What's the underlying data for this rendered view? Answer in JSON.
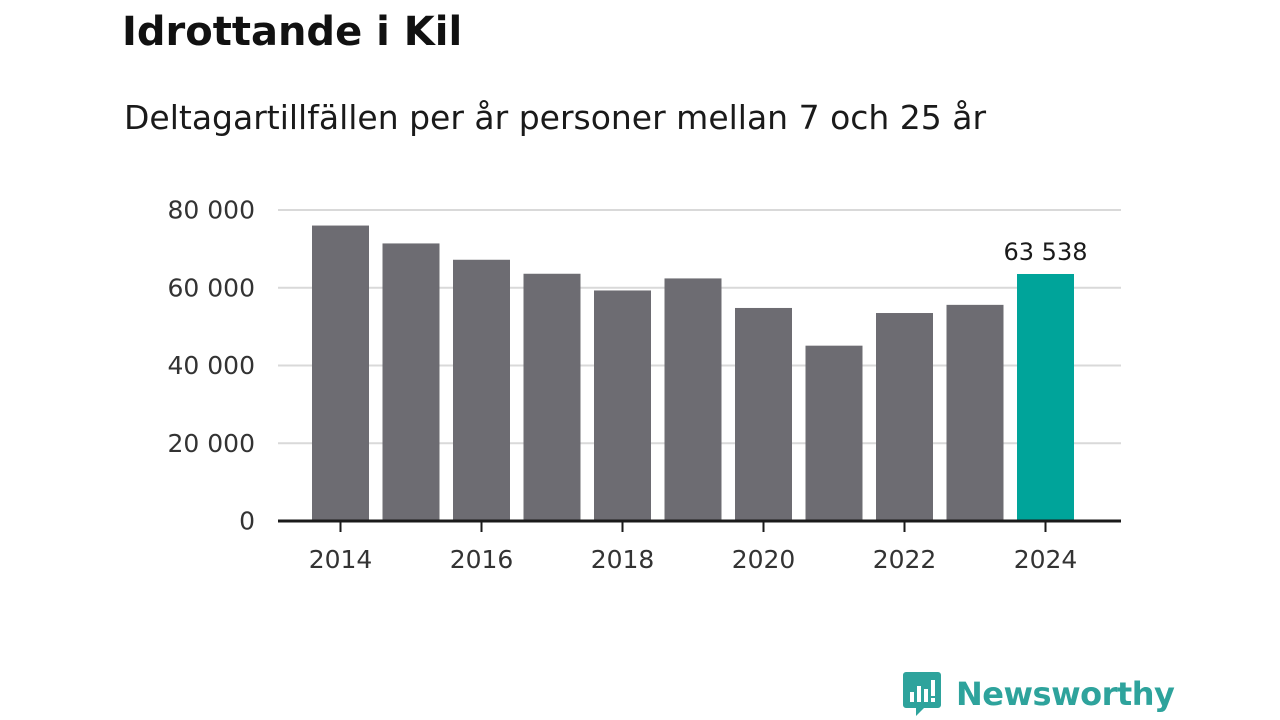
{
  "title": "Idrottande i Kil",
  "subtitle": "Deltagartillfällen per år personer mellan 7 och 25 år",
  "brand": {
    "name": "Newsworthy",
    "icon": "newsworthy-logo-icon",
    "color": "#2ea39c"
  },
  "chart_data": {
    "type": "bar",
    "categories": [
      "2014",
      "2015",
      "2016",
      "2017",
      "2018",
      "2019",
      "2020",
      "2021",
      "2022",
      "2023",
      "2024"
    ],
    "values": [
      76000,
      71400,
      67200,
      63600,
      59300,
      62400,
      54800,
      45100,
      53500,
      55600,
      63538
    ],
    "x_tick_labels": [
      "2014",
      "2016",
      "2018",
      "2020",
      "2022",
      "2024"
    ],
    "y_ticks": [
      0,
      20000,
      40000,
      60000,
      80000
    ],
    "y_tick_labels": [
      "0",
      "20 000",
      "40 000",
      "60 000",
      "80 000"
    ],
    "ylim": [
      0,
      80000
    ],
    "grid": true,
    "highlight": {
      "category": "2024",
      "label": "63 538"
    },
    "colors": {
      "bar": "#6d6c72",
      "highlight": "#00a49a",
      "grid": "#d9d9d9",
      "axis": "#1a1a1a"
    },
    "title": "",
    "xlabel": "",
    "ylabel": ""
  }
}
